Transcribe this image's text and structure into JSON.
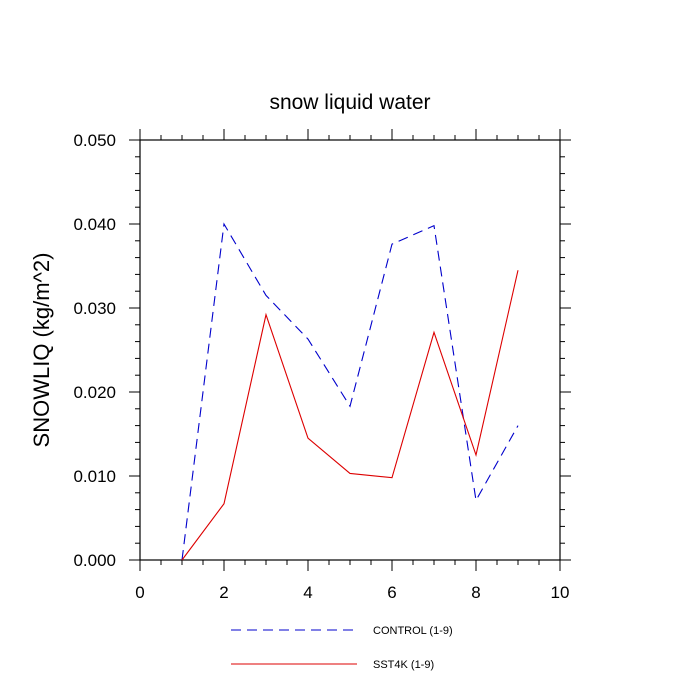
{
  "chart_data": {
    "type": "line",
    "title": "snow liquid water",
    "xlabel": "",
    "ylabel": "SNOWLIQ  (kg/m^2)",
    "xlim": [
      0,
      10
    ],
    "ylim": [
      0.0,
      0.05
    ],
    "x_ticks": [
      0,
      2,
      4,
      6,
      8,
      10
    ],
    "x_tick_labels": [
      "0",
      "2",
      "4",
      "6",
      "8",
      "10"
    ],
    "y_ticks": [
      0.0,
      0.01,
      0.02,
      0.03,
      0.04,
      0.05
    ],
    "y_tick_labels": [
      "0.000",
      "0.010",
      "0.020",
      "0.030",
      "0.040",
      "0.050"
    ],
    "grid": false,
    "legend_position": "bottom",
    "series": [
      {
        "name": "CONTROL (1-9)",
        "color": "#0000cc",
        "line_style": "dashed",
        "x": [
          1,
          2,
          3,
          4,
          5,
          6,
          7,
          8,
          9
        ],
        "y": [
          0.0,
          0.04,
          0.0315,
          0.0263,
          0.0183,
          0.0376,
          0.0398,
          0.0071,
          0.016
        ]
      },
      {
        "name": "SST4K (1-9)",
        "color": "#dd0000",
        "line_style": "solid",
        "x": [
          1,
          2,
          3,
          4,
          5,
          6,
          7,
          8,
          9
        ],
        "y": [
          0.0,
          0.0067,
          0.0292,
          0.0145,
          0.0103,
          0.0098,
          0.0271,
          0.0125,
          0.0345
        ]
      }
    ]
  }
}
